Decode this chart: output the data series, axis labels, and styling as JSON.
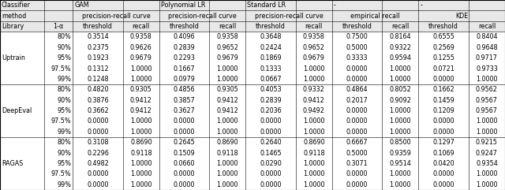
{
  "groups": [
    {
      "name": "Uptrain",
      "rows": [
        [
          "80%",
          "0.3514",
          "0.9358",
          "0.4096",
          "0.9358",
          "0.3648",
          "0.9358",
          "0.7500",
          "0.8164",
          "0.6555",
          "0.8404"
        ],
        [
          "90%",
          "0.2375",
          "0.9626",
          "0.2839",
          "0.9652",
          "0.2424",
          "0.9652",
          "0.5000",
          "0.9322",
          "0.2569",
          "0.9648"
        ],
        [
          "95%",
          "0.1923",
          "0.9679",
          "0.2293",
          "0.9679",
          "0.1869",
          "0.9679",
          "0.3333",
          "0.9594",
          "0.1255",
          "0.9717"
        ],
        [
          "97.5%",
          "0.1312",
          "1.0000",
          "0.1667",
          "1.0000",
          "0.1333",
          "1.0000",
          "0.0000",
          "1.0000",
          "0.0721",
          "0.9733"
        ],
        [
          "99%",
          "0.1248",
          "1.0000",
          "0.0979",
          "1.0000",
          "0.0667",
          "1.0000",
          "0.0000",
          "1.0000",
          "0.0000",
          "1.0000"
        ]
      ]
    },
    {
      "name": "DeepEval",
      "rows": [
        [
          "80%",
          "0.4820",
          "0.9305",
          "0.4856",
          "0.9305",
          "0.4053",
          "0.9332",
          "0.4864",
          "0.8052",
          "0.1662",
          "0.9562"
        ],
        [
          "90%",
          "0.3876",
          "0.9412",
          "0.3857",
          "0.9412",
          "0.2839",
          "0.9412",
          "0.2017",
          "0.9092",
          "0.1459",
          "0.9567"
        ],
        [
          "95%",
          "0.3662",
          "0.9412",
          "0.3627",
          "0.9412",
          "0.2036",
          "0.9492",
          "0.0000",
          "1.0000",
          "0.1209",
          "0.9567"
        ],
        [
          "97.5%",
          "0.0000",
          "1.0000",
          "0.0000",
          "1.0000",
          "0.0000",
          "1.0000",
          "0.0000",
          "1.0000",
          "0.0000",
          "1.0000"
        ],
        [
          "99%",
          "0.0000",
          "1.0000",
          "0.0000",
          "1.0000",
          "0.0000",
          "1.0000",
          "0.0000",
          "1.0000",
          "0.0000",
          "1.0000"
        ]
      ]
    },
    {
      "name": "RAGAS",
      "rows": [
        [
          "80%",
          "0.3108",
          "0.8690",
          "0.2645",
          "0.8690",
          "0.2640",
          "0.8690",
          "0.6667",
          "0.8500",
          "0.1297",
          "0.9215"
        ],
        [
          "90%",
          "0.2296",
          "0.9118",
          "0.1509",
          "0.9118",
          "0.1465",
          "0.9118",
          "0.5000",
          "0.9359",
          "0.1069",
          "0.9247"
        ],
        [
          "95%",
          "0.4982",
          "1.0000",
          "0.0660",
          "1.0000",
          "0.0290",
          "1.0000",
          "0.3071",
          "0.9514",
          "0.0420",
          "0.9354"
        ],
        [
          "97.5%",
          "0.0000",
          "1.0000",
          "0.0000",
          "1.0000",
          "0.0000",
          "1.0000",
          "0.0000",
          "1.0000",
          "0.0000",
          "1.0000"
        ],
        [
          "99%",
          "0.0000",
          "1.0000",
          "0.0000",
          "1.0000",
          "0.0000",
          "1.0000",
          "0.0000",
          "1.0000",
          "0.0000",
          "1.0000"
        ]
      ]
    }
  ],
  "header1": [
    "Classifier",
    "GAM",
    "Polynomial LR",
    "Standard LR",
    "-",
    "-"
  ],
  "header2": [
    "method",
    "precision-recall curve",
    "precision-recall curve",
    "precision-recall curve",
    "empirical recall",
    "KDE"
  ],
  "header3_left": [
    "Library",
    "1-α"
  ],
  "header3_cols": [
    "threshold",
    "recall",
    "threshold",
    "recall",
    "threshold",
    "recall",
    "threshold",
    "recall",
    "threshold",
    "recall"
  ],
  "font_size": 5.8,
  "bg_header": "#e8e8e8",
  "bg_data": "#ffffff",
  "line_color": "#888888",
  "border_color": "#000000"
}
